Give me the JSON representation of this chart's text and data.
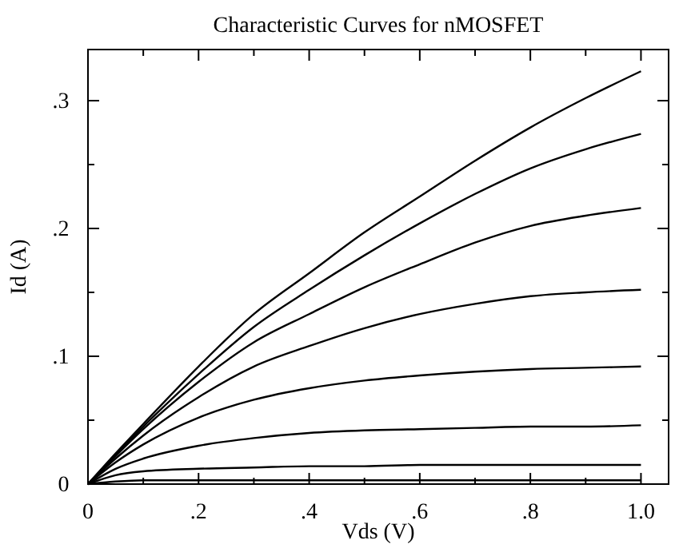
{
  "chart_data": {
    "type": "line",
    "title": "Characteristic Curves for nMOSFET",
    "xlabel": "Vds (V)",
    "ylabel": "Id (A)",
    "x": [
      0,
      0.05,
      0.1,
      0.2,
      0.3,
      0.4,
      0.5,
      0.6,
      0.7,
      0.8,
      0.9,
      1.0
    ],
    "series": [
      {
        "color": "#000000",
        "values": [
          0,
          0.024,
          0.047,
          0.092,
          0.133,
          0.165,
          0.197,
          0.225,
          0.253,
          0.279,
          0.302,
          0.323
        ]
      },
      {
        "color": "#000000",
        "values": [
          0,
          0.023,
          0.045,
          0.086,
          0.123,
          0.152,
          0.179,
          0.204,
          0.227,
          0.247,
          0.262,
          0.274
        ]
      },
      {
        "color": "#000000",
        "values": [
          0,
          0.022,
          0.043,
          0.08,
          0.111,
          0.133,
          0.154,
          0.172,
          0.189,
          0.202,
          0.21,
          0.216
        ]
      },
      {
        "color": "#000000",
        "values": [
          0,
          0.02,
          0.038,
          0.068,
          0.092,
          0.108,
          0.122,
          0.133,
          0.141,
          0.147,
          0.15,
          0.152
        ]
      },
      {
        "color": "#000000",
        "values": [
          0,
          0.017,
          0.031,
          0.052,
          0.066,
          0.075,
          0.081,
          0.085,
          0.088,
          0.09,
          0.091,
          0.092
        ]
      },
      {
        "color": "#000000",
        "values": [
          0,
          0.012,
          0.02,
          0.03,
          0.036,
          0.04,
          0.042,
          0.043,
          0.044,
          0.045,
          0.045,
          0.046
        ]
      },
      {
        "color": "#000000",
        "values": [
          0,
          0.007,
          0.01,
          0.012,
          0.013,
          0.014,
          0.014,
          0.015,
          0.015,
          0.015,
          0.015,
          0.015
        ]
      },
      {
        "color": "#000000",
        "values": [
          0,
          0.002,
          0.003,
          0.003,
          0.003,
          0.003,
          0.003,
          0.003,
          0.003,
          0.003,
          0.003,
          0.003
        ]
      }
    ],
    "xlim": [
      0,
      1.05
    ],
    "ylim": [
      0,
      0.34
    ],
    "xticks": [
      0,
      {
        "value": 0.1,
        "label": null
      },
      {
        "value": 0.2,
        "label": ".2"
      },
      {
        "value": 0.3,
        "label": null
      },
      {
        "value": 0.4,
        "label": ".4"
      },
      {
        "value": 0.5,
        "label": null
      },
      {
        "value": 0.6,
        "label": ".6"
      },
      {
        "value": 0.7,
        "label": null
      },
      {
        "value": 0.8,
        "label": ".8"
      },
      {
        "value": 0.9,
        "label": null
      },
      {
        "value": 1.0,
        "label": "1.0"
      }
    ],
    "yticks": [
      0,
      {
        "value": 0.05,
        "label": null
      },
      {
        "value": 0.1,
        "label": ".1"
      },
      {
        "value": 0.15,
        "label": null
      },
      {
        "value": 0.2,
        "label": ".2"
      },
      {
        "value": 0.25,
        "label": null
      },
      {
        "value": 0.3,
        "label": ".3"
      }
    ],
    "grid": false,
    "marker": "none",
    "line_style": "solid"
  }
}
